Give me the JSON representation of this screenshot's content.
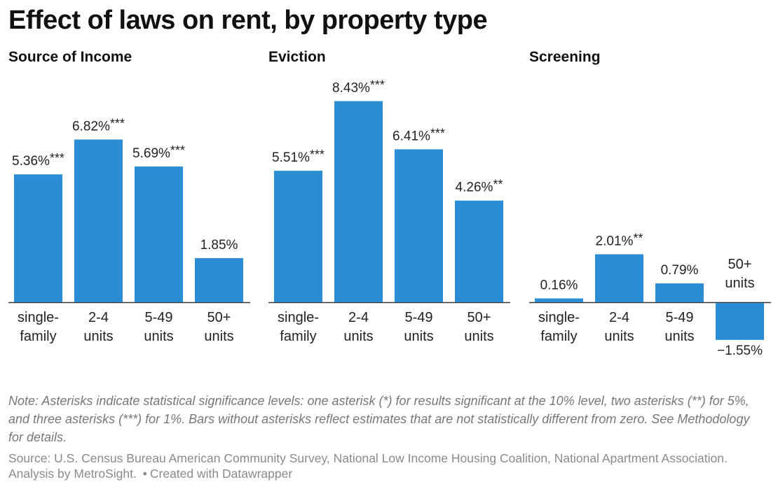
{
  "title": "Effect of laws on rent, by property type",
  "colors": {
    "bar": "#2b8dd3",
    "axis": "#333333",
    "text": "#222222"
  },
  "chart_data": [
    {
      "type": "bar",
      "title": "Source of Income",
      "categories": [
        "single-family",
        "2-4 units",
        "5-49 units",
        "50+ units"
      ],
      "category_lines": [
        [
          "single-",
          "family"
        ],
        [
          "2-4",
          "units"
        ],
        [
          "5-49",
          "units"
        ],
        [
          "50+",
          "units"
        ]
      ],
      "values": [
        5.36,
        6.82,
        5.69,
        1.85
      ],
      "value_labels": [
        "5.36%",
        "6.82%",
        "5.69%",
        "1.85%"
      ],
      "significance": [
        "***",
        "***",
        "***",
        ""
      ]
    },
    {
      "type": "bar",
      "title": "Eviction",
      "categories": [
        "single-family",
        "2-4 units",
        "5-49 units",
        "50+ units"
      ],
      "category_lines": [
        [
          "single-",
          "family"
        ],
        [
          "2-4",
          "units"
        ],
        [
          "5-49",
          "units"
        ],
        [
          "50+",
          "units"
        ]
      ],
      "values": [
        5.51,
        8.43,
        6.41,
        4.26
      ],
      "value_labels": [
        "5.51%",
        "8.43%",
        "6.41%",
        "4.26%"
      ],
      "significance": [
        "***",
        "***",
        "***",
        "**"
      ]
    },
    {
      "type": "bar",
      "title": "Screening",
      "categories": [
        "single-family",
        "2-4 units",
        "5-49 units",
        "50+ units"
      ],
      "category_lines": [
        [
          "single-",
          "family"
        ],
        [
          "2-4",
          "units"
        ],
        [
          "5-49",
          "units"
        ],
        [
          "50+",
          "units"
        ]
      ],
      "values": [
        0.16,
        2.01,
        0.79,
        -1.55
      ],
      "value_labels": [
        "0.16%",
        "2.01%",
        "0.79%",
        "−1.55%"
      ],
      "significance": [
        "",
        "**",
        "",
        ""
      ]
    }
  ],
  "note": "Note: Asterisks indicate statistical significance levels: one asterisk (*) for results significant at the 10% level, two asterisks (**) for 5%, and three asterisks (***) for 1%. Bars without asterisks reflect estimates that are not statistically different from zero. See Methodology for details.",
  "source": {
    "text": "Source: U.S. Census Bureau American Community Survey, National Low Income Housing Coalition, National Apartment Association. Analysis by MetroSight.",
    "separator": "•",
    "credit": "Created with Datawrapper"
  }
}
